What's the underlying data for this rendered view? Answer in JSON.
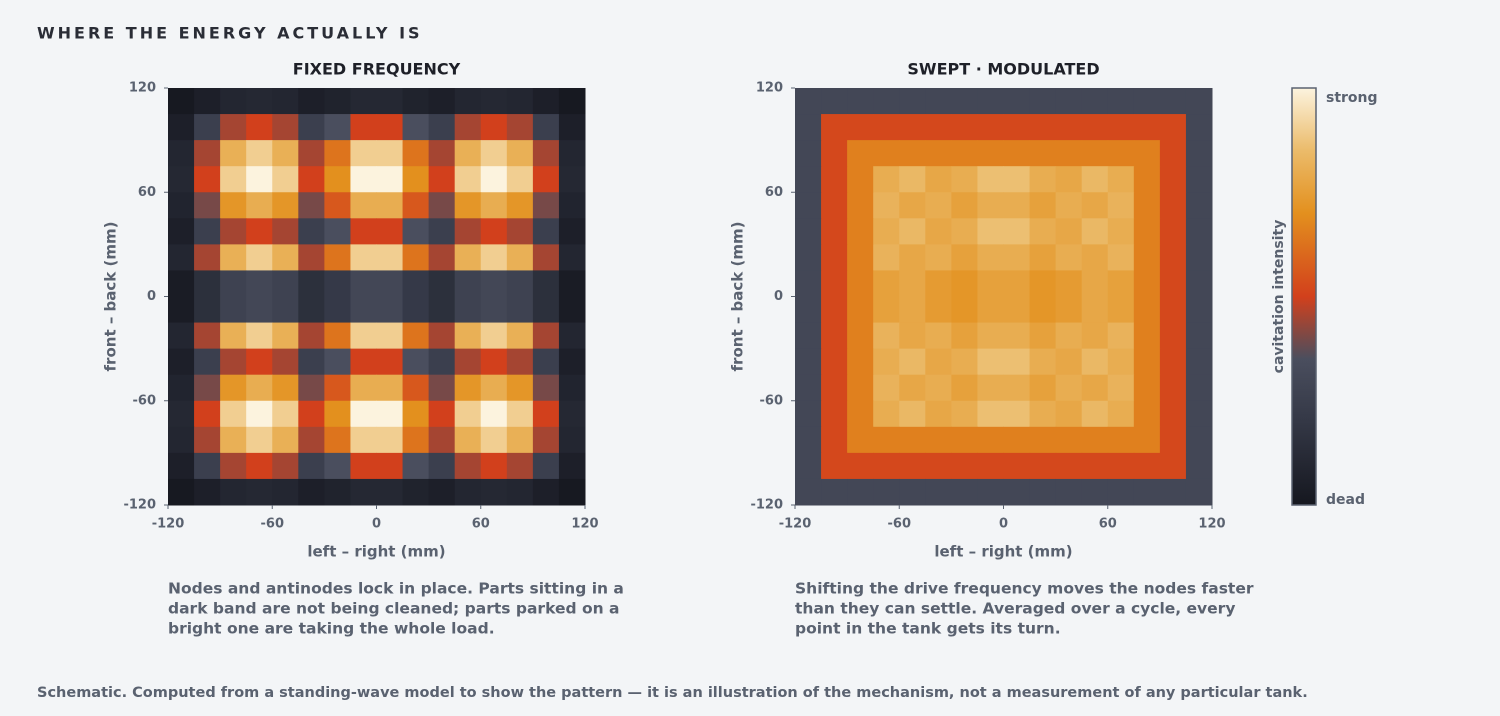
{
  "title": "WHERE THE ENERGY ACTUALLY IS",
  "footnote": "Schematic. Computed from a standing-wave model to show the pattern — it is an illustration of the mechanism, not a measurement of any particular tank.",
  "colorbar": {
    "label": "cavitation intensity",
    "high_label": "strong",
    "low_label": "dead",
    "zlim": [
      0,
      1
    ],
    "colorscale": [
      {
        "value": 0,
        "color": "#15171f"
      },
      {
        "value": 0.2,
        "color": "#343846"
      },
      {
        "value": 0.35,
        "color": "#4a4e5e"
      },
      {
        "value": 0.5,
        "color": "#d2401c"
      },
      {
        "value": 0.7,
        "color": "#e3901e"
      },
      {
        "value": 0.85,
        "color": "#ebbb6a"
      },
      {
        "value": 1,
        "color": "#fcf3de"
      }
    ]
  },
  "chart_data": [
    {
      "type": "heatmap",
      "title": "FIXED FREQUENCY",
      "xlabel": "left – right (mm)",
      "ylabel": "front – back (mm)",
      "xlim": [
        -120,
        120
      ],
      "ylim": [
        -120,
        120
      ],
      "xticks": [
        -120,
        -60,
        0,
        60,
        120
      ],
      "yticks": [
        -120,
        -60,
        0,
        60,
        120
      ],
      "caption": [
        "Nodes and antinodes lock in place. Parts sitting in a",
        "dark band are not being cleaned; parts parked on a",
        "bright one are taking the whole load."
      ],
      "z": [
        [
          0.01,
          0.05,
          0.09,
          0.1,
          0.09,
          0.05,
          0.07,
          0.1,
          0.1,
          0.07,
          0.05,
          0.09,
          0.1,
          0.09,
          0.05,
          0.01
        ],
        [
          0.05,
          0.25,
          0.45,
          0.5,
          0.45,
          0.25,
          0.35,
          0.5,
          0.5,
          0.35,
          0.25,
          0.45,
          0.5,
          0.45,
          0.25,
          0.05
        ],
        [
          0.09,
          0.45,
          0.81,
          0.9,
          0.81,
          0.45,
          0.63,
          0.9,
          0.9,
          0.63,
          0.45,
          0.81,
          0.9,
          0.81,
          0.45,
          0.09
        ],
        [
          0.1,
          0.5,
          0.9,
          1.0,
          0.9,
          0.5,
          0.7,
          1.0,
          1.0,
          0.7,
          0.5,
          0.9,
          1.0,
          0.9,
          0.5,
          0.1
        ],
        [
          0.08,
          0.4,
          0.72,
          0.8,
          0.72,
          0.4,
          0.56,
          0.8,
          0.8,
          0.56,
          0.4,
          0.72,
          0.8,
          0.72,
          0.4,
          0.08
        ],
        [
          0.05,
          0.25,
          0.45,
          0.5,
          0.45,
          0.25,
          0.35,
          0.5,
          0.5,
          0.35,
          0.25,
          0.45,
          0.5,
          0.45,
          0.25,
          0.05
        ],
        [
          0.09,
          0.45,
          0.81,
          0.9,
          0.81,
          0.45,
          0.63,
          0.9,
          0.9,
          0.63,
          0.45,
          0.81,
          0.9,
          0.81,
          0.45,
          0.09
        ],
        [
          0.03,
          0.15,
          0.27,
          0.3,
          0.27,
          0.15,
          0.21,
          0.3,
          0.3,
          0.21,
          0.15,
          0.27,
          0.3,
          0.27,
          0.15,
          0.03
        ],
        [
          0.03,
          0.15,
          0.27,
          0.3,
          0.27,
          0.15,
          0.21,
          0.3,
          0.3,
          0.21,
          0.15,
          0.27,
          0.3,
          0.27,
          0.15,
          0.03
        ],
        [
          0.09,
          0.45,
          0.81,
          0.9,
          0.81,
          0.45,
          0.63,
          0.9,
          0.9,
          0.63,
          0.45,
          0.81,
          0.9,
          0.81,
          0.45,
          0.09
        ],
        [
          0.05,
          0.25,
          0.45,
          0.5,
          0.45,
          0.25,
          0.35,
          0.5,
          0.5,
          0.35,
          0.25,
          0.45,
          0.5,
          0.45,
          0.25,
          0.05
        ],
        [
          0.08,
          0.4,
          0.72,
          0.8,
          0.72,
          0.4,
          0.56,
          0.8,
          0.8,
          0.56,
          0.4,
          0.72,
          0.8,
          0.72,
          0.4,
          0.08
        ],
        [
          0.1,
          0.5,
          0.9,
          1.0,
          0.9,
          0.5,
          0.7,
          1.0,
          1.0,
          0.7,
          0.5,
          0.9,
          1.0,
          0.9,
          0.5,
          0.1
        ],
        [
          0.09,
          0.45,
          0.81,
          0.9,
          0.81,
          0.45,
          0.63,
          0.9,
          0.9,
          0.63,
          0.45,
          0.81,
          0.9,
          0.81,
          0.45,
          0.09
        ],
        [
          0.05,
          0.25,
          0.45,
          0.5,
          0.45,
          0.25,
          0.35,
          0.5,
          0.5,
          0.35,
          0.25,
          0.45,
          0.5,
          0.45,
          0.25,
          0.05
        ],
        [
          0.01,
          0.05,
          0.09,
          0.1,
          0.09,
          0.05,
          0.07,
          0.1,
          0.1,
          0.07,
          0.05,
          0.09,
          0.1,
          0.09,
          0.05,
          0.01
        ]
      ]
    },
    {
      "type": "heatmap",
      "title": "SWEPT · MODULATED",
      "xlabel": "left – right (mm)",
      "ylabel": "front – back (mm)",
      "xlim": [
        -120,
        120
      ],
      "ylim": [
        -120,
        120
      ],
      "xticks": [
        -120,
        -60,
        0,
        60,
        120
      ],
      "yticks": [
        -120,
        -60,
        0,
        60,
        120
      ],
      "caption": [
        "Shifting the drive frequency moves the nodes faster",
        "than they can settle. Averaged over a cycle, every",
        "point in the tank gets its turn."
      ],
      "z": [
        [
          0.3,
          0.3,
          0.3,
          0.3,
          0.3,
          0.3,
          0.3,
          0.3,
          0.3,
          0.3,
          0.3,
          0.3,
          0.3,
          0.3,
          0.3,
          0.3
        ],
        [
          0.3,
          0.52,
          0.52,
          0.52,
          0.52,
          0.52,
          0.52,
          0.52,
          0.52,
          0.52,
          0.52,
          0.52,
          0.52,
          0.52,
          0.52,
          0.3
        ],
        [
          0.3,
          0.52,
          0.66,
          0.66,
          0.66,
          0.66,
          0.66,
          0.66,
          0.66,
          0.66,
          0.66,
          0.66,
          0.66,
          0.66,
          0.52,
          0.3
        ],
        [
          0.3,
          0.52,
          0.66,
          0.8,
          0.84,
          0.78,
          0.8,
          0.86,
          0.86,
          0.8,
          0.78,
          0.84,
          0.8,
          0.66,
          0.52,
          0.3
        ],
        [
          0.3,
          0.52,
          0.66,
          0.82,
          0.78,
          0.8,
          0.76,
          0.8,
          0.8,
          0.76,
          0.8,
          0.78,
          0.82,
          0.66,
          0.52,
          0.3
        ],
        [
          0.3,
          0.52,
          0.66,
          0.8,
          0.84,
          0.78,
          0.8,
          0.86,
          0.86,
          0.8,
          0.78,
          0.84,
          0.8,
          0.66,
          0.52,
          0.3
        ],
        [
          0.3,
          0.52,
          0.66,
          0.82,
          0.78,
          0.8,
          0.76,
          0.8,
          0.8,
          0.76,
          0.8,
          0.78,
          0.82,
          0.66,
          0.52,
          0.3
        ],
        [
          0.3,
          0.52,
          0.66,
          0.76,
          0.78,
          0.74,
          0.72,
          0.76,
          0.76,
          0.72,
          0.74,
          0.78,
          0.76,
          0.66,
          0.52,
          0.3
        ],
        [
          0.3,
          0.52,
          0.66,
          0.76,
          0.78,
          0.74,
          0.72,
          0.76,
          0.76,
          0.72,
          0.74,
          0.78,
          0.76,
          0.66,
          0.52,
          0.3
        ],
        [
          0.3,
          0.52,
          0.66,
          0.82,
          0.78,
          0.8,
          0.76,
          0.8,
          0.8,
          0.76,
          0.8,
          0.78,
          0.82,
          0.66,
          0.52,
          0.3
        ],
        [
          0.3,
          0.52,
          0.66,
          0.8,
          0.84,
          0.78,
          0.8,
          0.86,
          0.86,
          0.8,
          0.78,
          0.84,
          0.8,
          0.66,
          0.52,
          0.3
        ],
        [
          0.3,
          0.52,
          0.66,
          0.82,
          0.78,
          0.8,
          0.76,
          0.8,
          0.8,
          0.76,
          0.8,
          0.78,
          0.82,
          0.66,
          0.52,
          0.3
        ],
        [
          0.3,
          0.52,
          0.66,
          0.8,
          0.84,
          0.78,
          0.8,
          0.86,
          0.86,
          0.8,
          0.78,
          0.84,
          0.8,
          0.66,
          0.52,
          0.3
        ],
        [
          0.3,
          0.52,
          0.66,
          0.66,
          0.66,
          0.66,
          0.66,
          0.66,
          0.66,
          0.66,
          0.66,
          0.66,
          0.66,
          0.66,
          0.52,
          0.3
        ],
        [
          0.3,
          0.52,
          0.52,
          0.52,
          0.52,
          0.52,
          0.52,
          0.52,
          0.52,
          0.52,
          0.52,
          0.52,
          0.52,
          0.52,
          0.52,
          0.3
        ],
        [
          0.3,
          0.3,
          0.3,
          0.3,
          0.3,
          0.3,
          0.3,
          0.3,
          0.3,
          0.3,
          0.3,
          0.3,
          0.3,
          0.3,
          0.3,
          0.3
        ]
      ]
    }
  ]
}
